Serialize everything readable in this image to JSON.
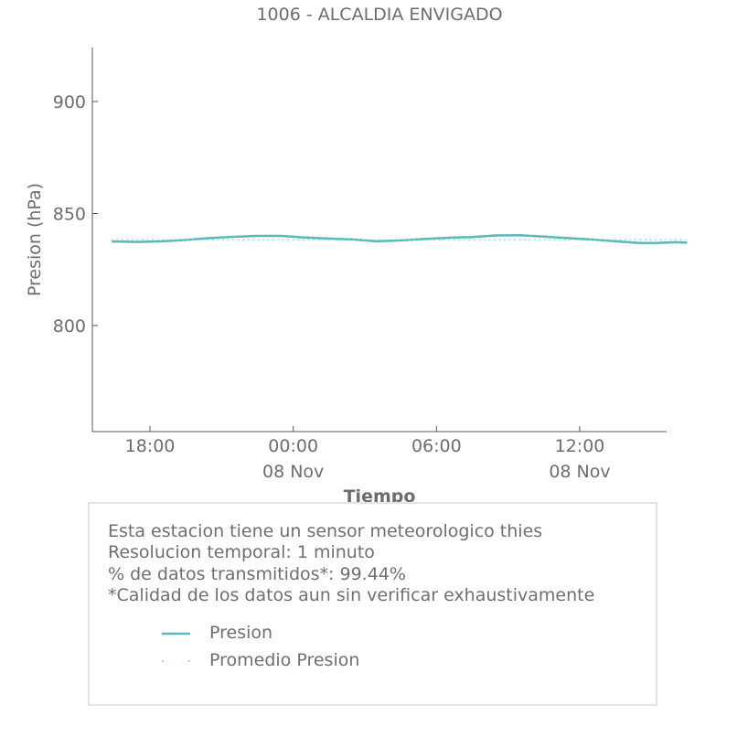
{
  "chart_data": {
    "type": "line",
    "title": "1006 - ALCALDIA ENVIGADO",
    "xlabel": "Tiempo",
    "ylabel": "Presion (hPa)",
    "ylim": [
      750,
      925
    ],
    "yticks": [
      800,
      850,
      900
    ],
    "x_range_hours": [
      -7.6,
      16.5
    ],
    "xticks": [
      {
        "hour": -6,
        "label": "18:00",
        "sublabel": ""
      },
      {
        "hour": 0,
        "label": "00:00",
        "sublabel": "08 Nov"
      },
      {
        "hour": 6,
        "label": "06:00",
        "sublabel": ""
      },
      {
        "hour": 12,
        "label": "12:00",
        "sublabel": "08 Nov"
      }
    ],
    "grid": false,
    "series": [
      {
        "name": "Presion",
        "style": "solid",
        "color": "#5bb8b8",
        "x": [
          -7.6,
          -6.5,
          -5.5,
          -4.5,
          -3.5,
          -2.5,
          -1.5,
          -0.5,
          0.5,
          1.5,
          2.5,
          3.5,
          4.5,
          5.5,
          6.5,
          7.5,
          8.5,
          9.5,
          10.5,
          11.5,
          12.5,
          13.5,
          14.5,
          15.3,
          16.0,
          16.5
        ],
        "y": [
          837.5,
          837.3,
          837.6,
          838.2,
          839.0,
          839.6,
          840.0,
          840.0,
          839.3,
          838.8,
          838.4,
          837.6,
          838.0,
          838.6,
          839.2,
          839.5,
          840.2,
          840.3,
          839.7,
          839.0,
          838.4,
          837.6,
          836.8,
          836.9,
          837.2,
          837.0
        ]
      },
      {
        "name": "Promedio Presion",
        "style": "dotted",
        "color": "#7fd6cf",
        "x": [
          -7.6,
          16.5
        ],
        "y": [
          838.3,
          838.3
        ]
      }
    ]
  },
  "info": {
    "lines": [
      "Esta estacion tiene un sensor meteorologico thies",
      "Resolucion temporal: 1 minuto",
      "% de datos transmitidos*: 99.44%",
      "*Calidad de los datos aun sin verificar exhaustivamente"
    ],
    "legend": [
      {
        "label": "Presion",
        "style": "solid",
        "color": "#5bb8b8"
      },
      {
        "label": "Promedio Presion",
        "style": "dotted",
        "color": "#7fd6cf"
      }
    ]
  }
}
